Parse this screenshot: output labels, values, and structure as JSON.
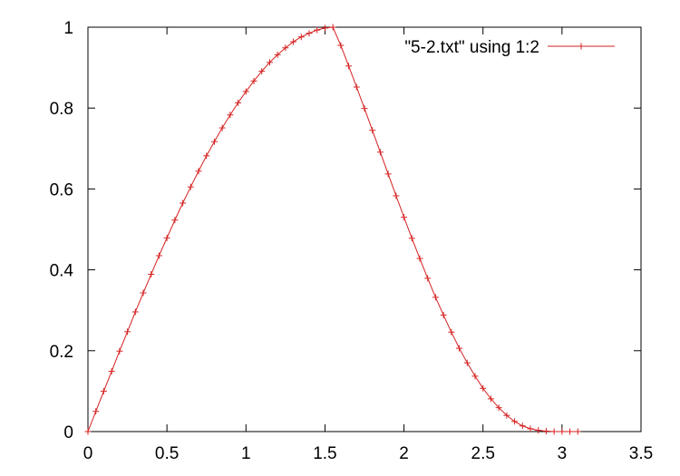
{
  "chart_data": {
    "type": "line",
    "title": "",
    "xlabel": "",
    "ylabel": "",
    "xlim": [
      0,
      3.5
    ],
    "ylim": [
      0,
      1
    ],
    "xticks": [
      "0",
      "0.5",
      "1",
      "1.5",
      "2",
      "2.5",
      "3",
      "3.5"
    ],
    "yticks": [
      "0",
      "0.2",
      "0.4",
      "0.6",
      "0.8",
      "1"
    ],
    "grid": false,
    "legend": {
      "position": "top-right"
    },
    "series": [
      {
        "name": "\"5-2.txt\" using 1:2",
        "color": "#d62020",
        "marker": "plus",
        "x": [
          0,
          0.05,
          0.1,
          0.15,
          0.2,
          0.25,
          0.3,
          0.35,
          0.4,
          0.45,
          0.5,
          0.55,
          0.6,
          0.65,
          0.7,
          0.75,
          0.8,
          0.85,
          0.9,
          0.95,
          1.0,
          1.05,
          1.1,
          1.15,
          1.2,
          1.25,
          1.3,
          1.35,
          1.4,
          1.45,
          1.5,
          1.55,
          1.6,
          1.65,
          1.7,
          1.75,
          1.8,
          1.85,
          1.9,
          1.95,
          2.0,
          2.05,
          2.1,
          2.15,
          2.2,
          2.25,
          2.3,
          2.35,
          2.4,
          2.45,
          2.5,
          2.55,
          2.6,
          2.65,
          2.7,
          2.75,
          2.8,
          2.85,
          2.9,
          2.95,
          3.0,
          3.05,
          3.1
        ],
        "y": [
          0,
          0.05,
          0.1,
          0.149,
          0.199,
          0.247,
          0.296,
          0.343,
          0.389,
          0.435,
          0.479,
          0.523,
          0.565,
          0.605,
          0.644,
          0.682,
          0.717,
          0.751,
          0.783,
          0.813,
          0.841,
          0.867,
          0.891,
          0.913,
          0.932,
          0.949,
          0.964,
          0.976,
          0.985,
          0.993,
          0.998,
          1.0,
          0.955,
          0.904,
          0.852,
          0.799,
          0.745,
          0.691,
          0.637,
          0.583,
          0.53,
          0.478,
          0.428,
          0.379,
          0.332,
          0.288,
          0.246,
          0.206,
          0.17,
          0.137,
          0.107,
          0.081,
          0.059,
          0.04,
          0.025,
          0.014,
          0.007,
          0.003,
          0.001,
          0.0,
          0.0,
          0.0,
          0.0
        ]
      }
    ]
  }
}
